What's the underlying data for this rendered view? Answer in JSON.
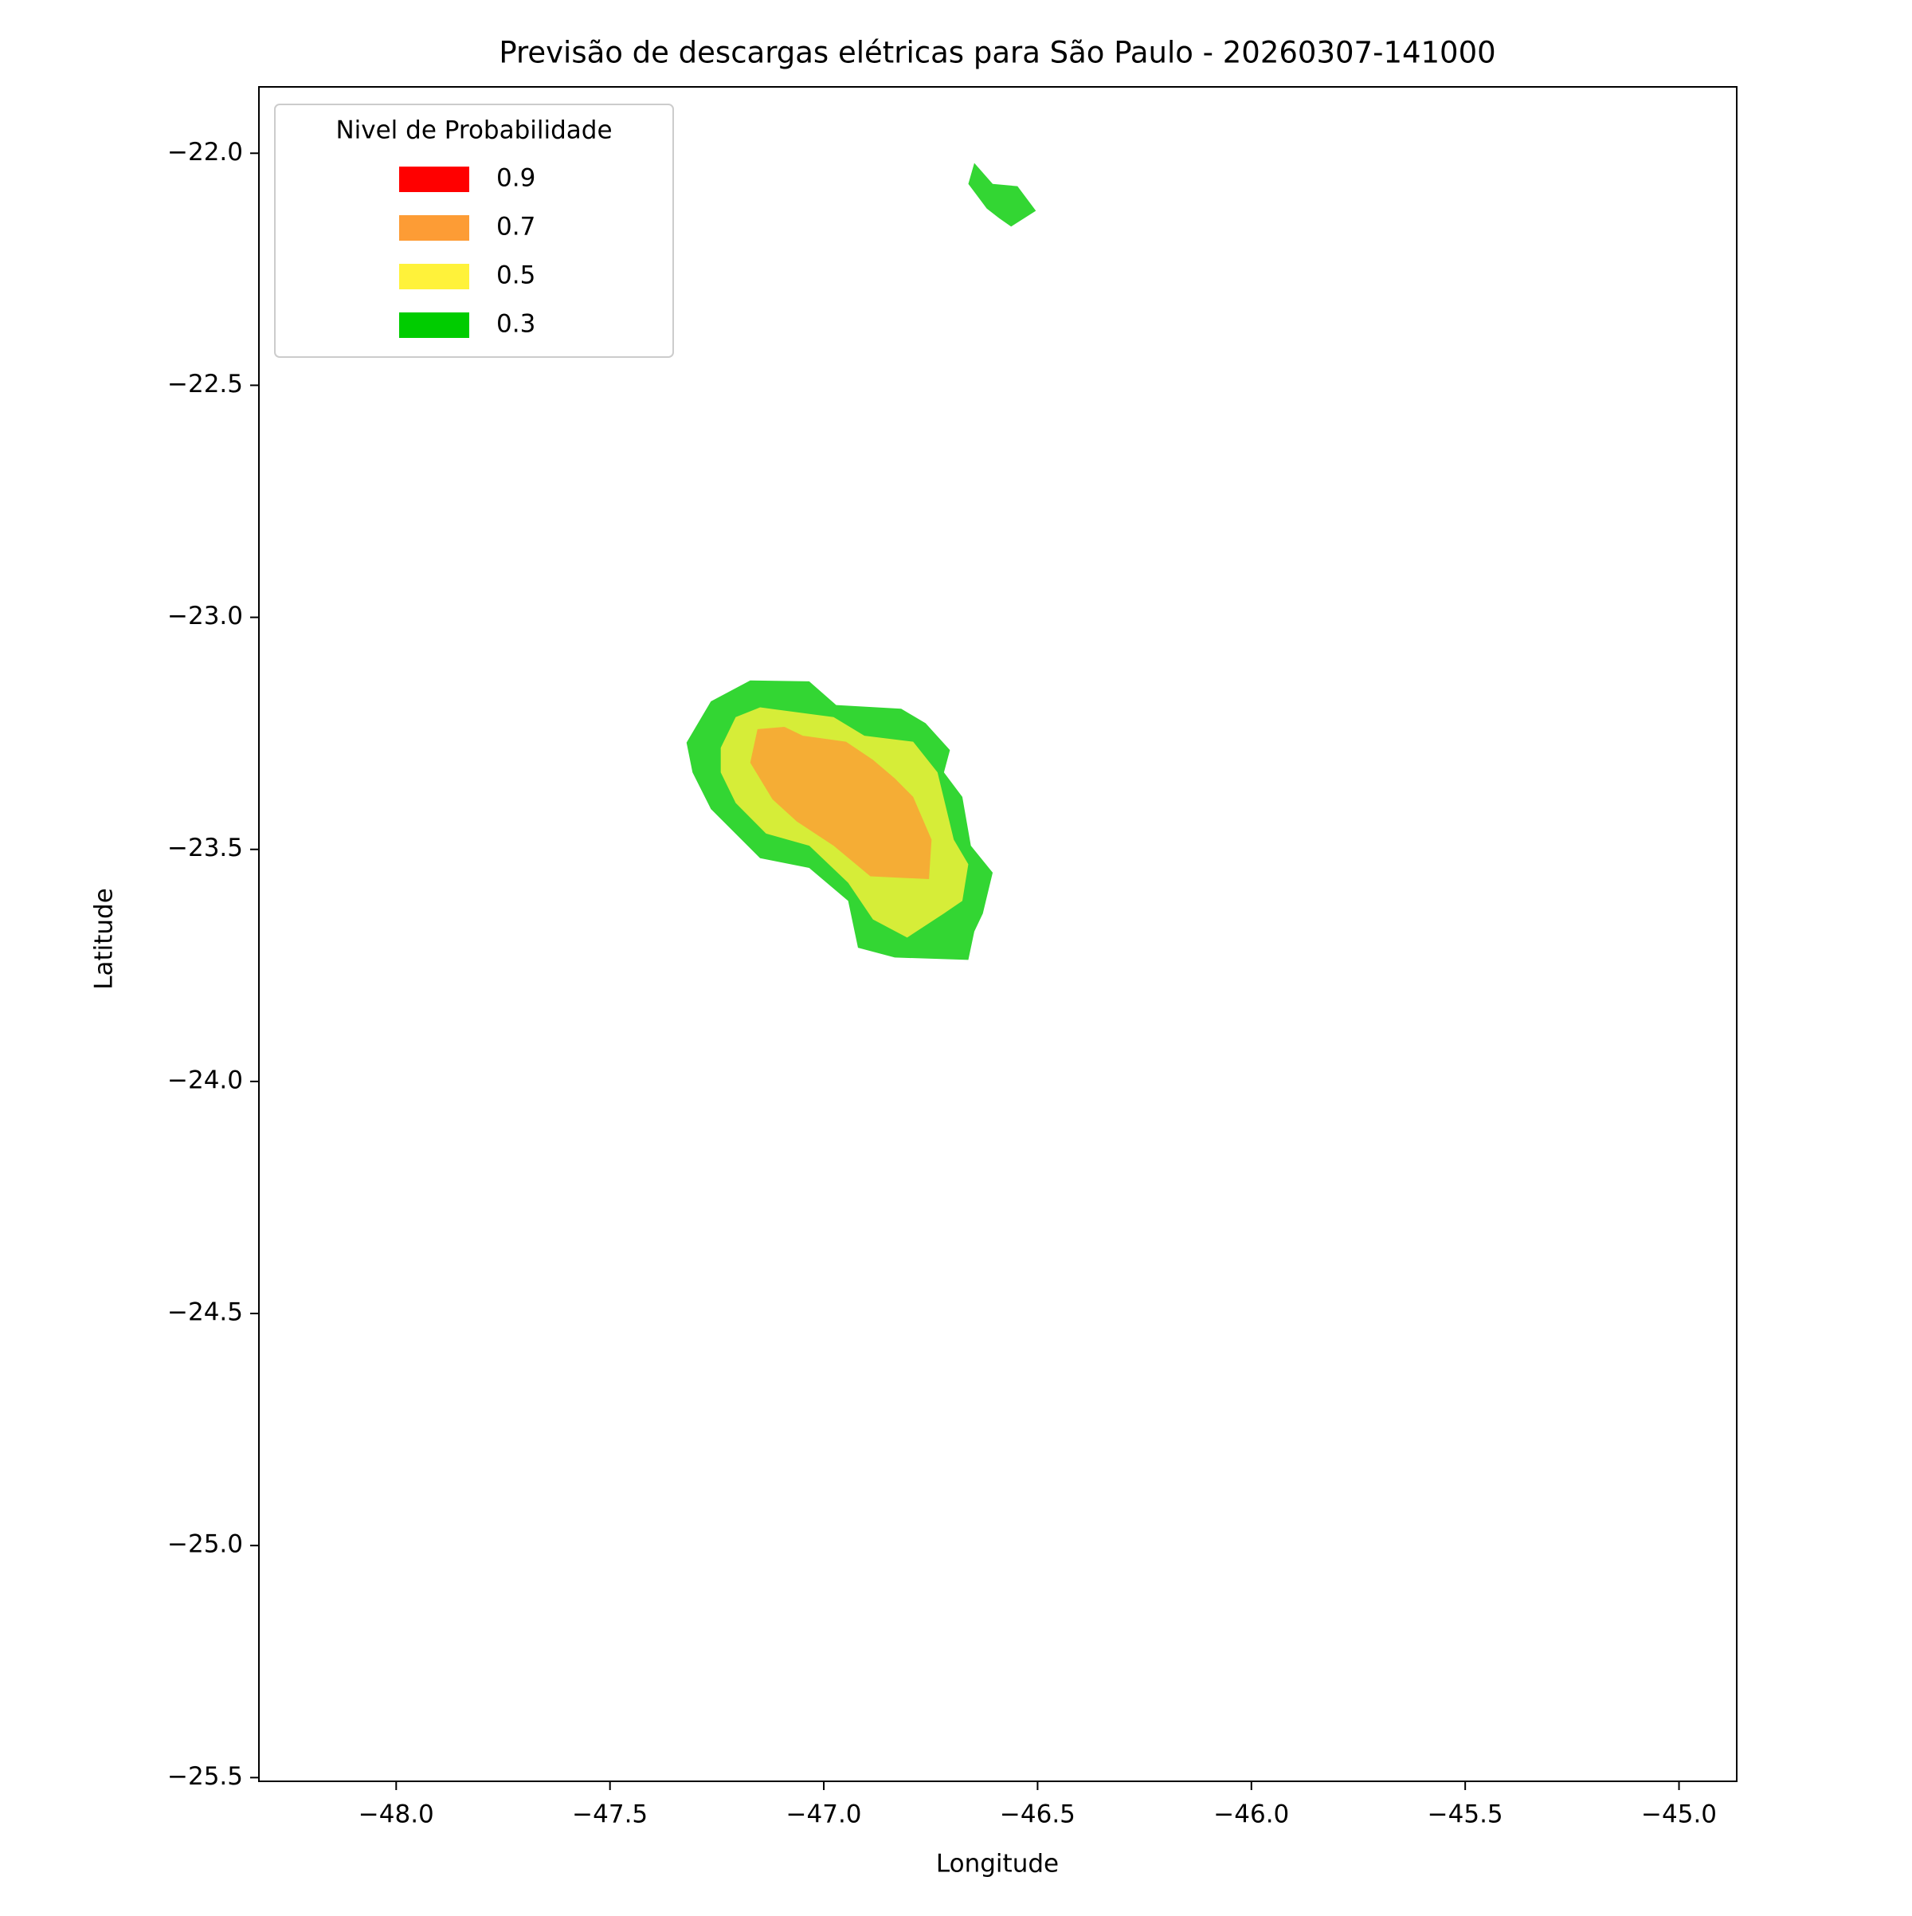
{
  "chart_data": {
    "type": "contour",
    "title": "Previsão de descargas elétricas para São Paulo - 20260307-141000",
    "x_label": "Longitude",
    "y_label": "Latitude",
    "legend_title": "Nivel de Probabilidade",
    "legend_position": "upper-left",
    "fill_opacity": 0.8,
    "xlim": [
      -48.321,
      -44.865
    ],
    "ylim": [
      -25.508,
      -21.857
    ],
    "xticks": [
      {
        "value": -48.0,
        "label": "−48.0"
      },
      {
        "value": -47.5,
        "label": "−47.5"
      },
      {
        "value": -47.0,
        "label": "−47.0"
      },
      {
        "value": -46.5,
        "label": "−46.5"
      },
      {
        "value": -46.0,
        "label": "−46.0"
      },
      {
        "value": -45.5,
        "label": "−45.5"
      },
      {
        "value": -45.0,
        "label": "−45.0"
      }
    ],
    "yticks": [
      {
        "value": -22.0,
        "label": "−22.0"
      },
      {
        "value": -22.5,
        "label": "−22.5"
      },
      {
        "value": -23.0,
        "label": "−23.0"
      },
      {
        "value": -23.5,
        "label": "−23.5"
      },
      {
        "value": -24.0,
        "label": "−24.0"
      },
      {
        "value": -24.5,
        "label": "−24.5"
      },
      {
        "value": -25.0,
        "label": "−25.0"
      },
      {
        "value": -25.5,
        "label": "−25.5"
      }
    ],
    "series": [
      {
        "name": "0.9",
        "color": "#ff0000",
        "polygons": []
      },
      {
        "name": "0.7",
        "color": "#fd9c35",
        "polygons": [
          {
            "lon": [
              -47.172,
              -47.155,
              -47.092,
              -47.049,
              -46.948,
              -46.885,
              -46.834,
              -46.791,
              -46.748,
              -46.754,
              -46.891,
              -46.977,
              -47.063,
              -47.12
            ],
            "lat": [
              -23.313,
              -23.241,
              -23.236,
              -23.255,
              -23.268,
              -23.307,
              -23.347,
              -23.387,
              -23.479,
              -23.564,
              -23.558,
              -23.492,
              -23.44,
              -23.392
            ]
          }
        ]
      },
      {
        "name": "0.5",
        "color": "#fff23a",
        "polygons": [
          {
            "lon": [
              -47.241,
              -47.206,
              -47.149,
              -46.977,
              -46.905,
              -46.791,
              -46.734,
              -46.696,
              -46.662,
              -46.676,
              -46.719,
              -46.805,
              -46.885,
              -46.943,
              -47.034,
              -47.135,
              -47.206,
              -47.241
            ],
            "lat": [
              -23.281,
              -23.215,
              -23.194,
              -23.215,
              -23.255,
              -23.268,
              -23.334,
              -23.479,
              -23.532,
              -23.611,
              -23.638,
              -23.69,
              -23.651,
              -23.572,
              -23.492,
              -23.466,
              -23.4,
              -23.334
            ]
          }
        ]
      },
      {
        "name": "0.3",
        "color": "#00cc00",
        "polygons": [
          {
            "lon": [
              -47.321,
              -47.264,
              -47.172,
              -47.034,
              -46.971,
              -46.819,
              -46.762,
              -46.705,
              -46.719,
              -46.676,
              -46.656,
              -46.605,
              -46.628,
              -46.648,
              -46.662,
              -46.834,
              -46.92,
              -46.943,
              -47.034,
              -47.149,
              -47.264,
              -47.307
            ],
            "lat": [
              -23.27,
              -23.181,
              -23.136,
              -23.138,
              -23.189,
              -23.197,
              -23.228,
              -23.286,
              -23.334,
              -23.387,
              -23.492,
              -23.55,
              -23.638,
              -23.677,
              -23.738,
              -23.733,
              -23.712,
              -23.611,
              -23.54,
              -23.519,
              -23.413,
              -23.334
            ]
          },
          {
            "lon": [
              -46.648,
              -46.605,
              -46.547,
              -46.504,
              -46.562,
              -46.59,
              -46.619,
              -46.662
            ],
            "lat": [
              -22.021,
              -22.066,
              -22.071,
              -22.124,
              -22.158,
              -22.14,
              -22.119,
              -22.066
            ]
          }
        ]
      }
    ]
  }
}
